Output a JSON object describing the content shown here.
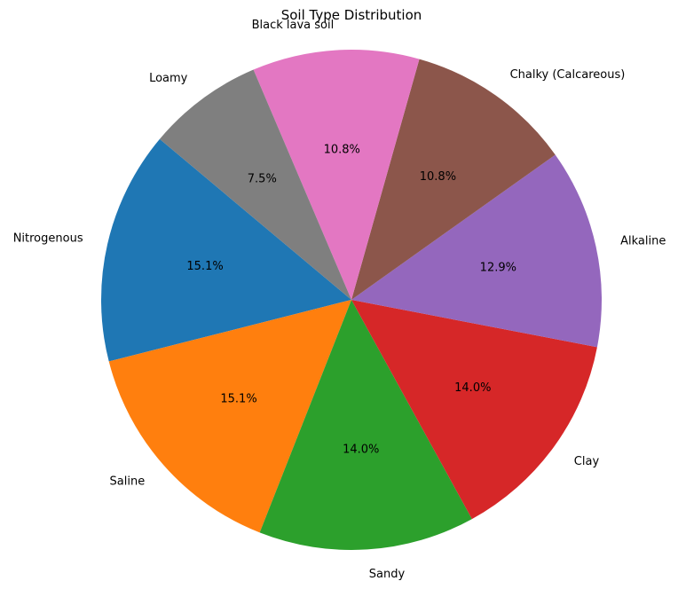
{
  "chart_data": {
    "type": "pie",
    "title": "Soil Type Distribution",
    "start_angle_deg": 140,
    "direction": "counterclockwise",
    "slices": [
      {
        "label": "Nitrogenous",
        "value": 15.1,
        "pct_label": "15.1%",
        "color": "#1f77b4"
      },
      {
        "label": "Saline",
        "value": 15.1,
        "pct_label": "15.1%",
        "color": "#ff7f0e"
      },
      {
        "label": "Sandy",
        "value": 14.0,
        "pct_label": "14.0%",
        "color": "#2ca02c"
      },
      {
        "label": "Clay",
        "value": 14.0,
        "pct_label": "14.0%",
        "color": "#d62728"
      },
      {
        "label": "Alkaline",
        "value": 12.9,
        "pct_label": "12.9%",
        "color": "#9467bd"
      },
      {
        "label": "Chalky (Calcareous)",
        "value": 10.8,
        "pct_label": "10.8%",
        "color": "#8c564b"
      },
      {
        "label": "Black lava soil",
        "value": 10.8,
        "pct_label": "10.8%",
        "color": "#e377c2"
      },
      {
        "label": "Loamy",
        "value": 7.5,
        "pct_label": "7.5%",
        "color": "#7f7f7f"
      }
    ]
  }
}
